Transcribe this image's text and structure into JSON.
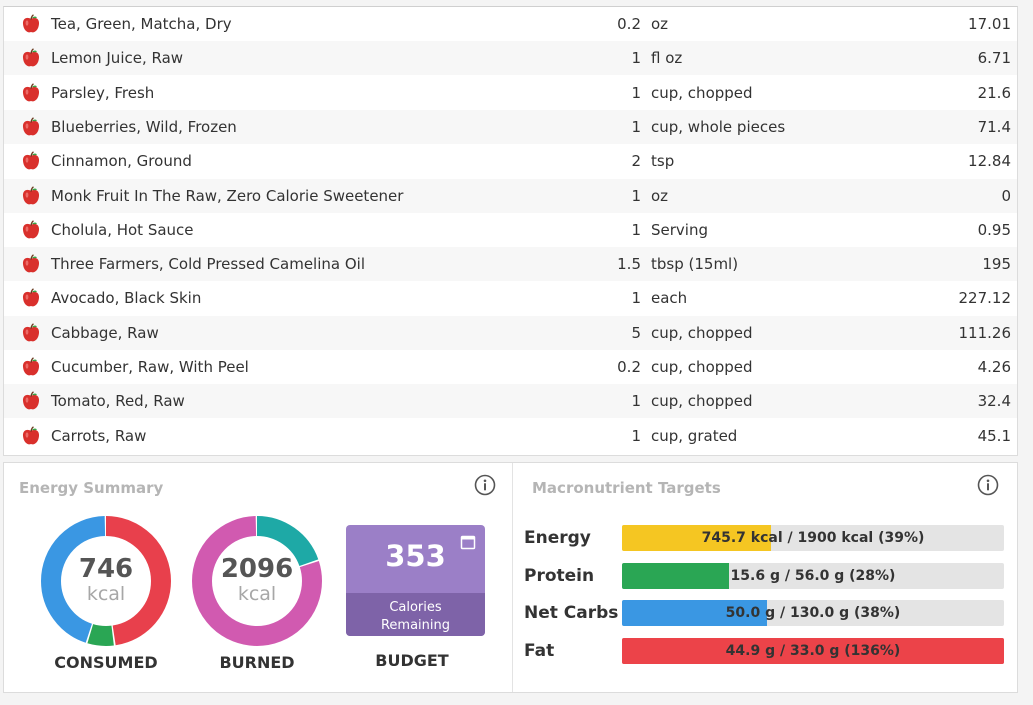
{
  "food_rows": [
    {
      "name": "Tea, Green, Matcha, Dry",
      "amount": "0.2",
      "unit": "oz",
      "calories": "17.01"
    },
    {
      "name": "Lemon Juice, Raw",
      "amount": "1",
      "unit": "fl oz",
      "calories": "6.71"
    },
    {
      "name": "Parsley, Fresh",
      "amount": "1",
      "unit": "cup, chopped",
      "calories": "21.6"
    },
    {
      "name": "Blueberries, Wild, Frozen",
      "amount": "1",
      "unit": "cup, whole pieces",
      "calories": "71.4"
    },
    {
      "name": "Cinnamon, Ground",
      "amount": "2",
      "unit": "tsp",
      "calories": "12.84"
    },
    {
      "name": "Monk Fruit In The Raw, Zero Calorie Sweetener",
      "amount": "1",
      "unit": "oz",
      "calories": "0"
    },
    {
      "name": "Cholula, Hot Sauce",
      "amount": "1",
      "unit": "Serving",
      "calories": "0.95"
    },
    {
      "name": "Three Farmers, Cold Pressed Camelina Oil",
      "amount": "1.5",
      "unit": "tbsp (15ml)",
      "calories": "195"
    },
    {
      "name": "Avocado, Black Skin",
      "amount": "1",
      "unit": "each",
      "calories": "227.12"
    },
    {
      "name": "Cabbage, Raw",
      "amount": "5",
      "unit": "cup, chopped",
      "calories": "111.26"
    },
    {
      "name": "Cucumber, Raw, With Peel",
      "amount": "0.2",
      "unit": "cup, chopped",
      "calories": "4.26"
    },
    {
      "name": "Tomato, Red, Raw",
      "amount": "1",
      "unit": "cup, chopped",
      "calories": "32.4"
    },
    {
      "name": "Carrots, Raw",
      "amount": "1",
      "unit": "cup, grated",
      "calories": "45.1"
    }
  ],
  "food_icon": "apple-icon",
  "energy_summary": {
    "title": "Energy Summary",
    "consumed": {
      "value": "746",
      "unit": "kcal",
      "label": "CONSUMED",
      "segments": [
        {
          "color": "#e8404c",
          "fraction": 0.48
        },
        {
          "color": "#2aa654",
          "fraction": 0.07
        },
        {
          "color": "#3a97e3",
          "fraction": 0.45
        }
      ]
    },
    "burned": {
      "value": "2096",
      "unit": "kcal",
      "label": "BURNED",
      "segments": [
        {
          "color": "#1ea9a6",
          "fraction": 0.2
        },
        {
          "color": "#d15ab0",
          "fraction": 0.8
        }
      ]
    },
    "budget": {
      "value": "353",
      "line1": "Calories",
      "line2": "Remaining",
      "label": "BUDGET"
    }
  },
  "macronutrient_targets": {
    "title": "Macronutrient Targets",
    "rows": [
      {
        "label": "Energy",
        "text": "745.7 kcal / 1900 kcal (39%)",
        "fraction": 0.39,
        "color": "#f5c622"
      },
      {
        "label": "Protein",
        "text": "15.6 g / 56.0 g (28%)",
        "fraction": 0.28,
        "color": "#2aa654"
      },
      {
        "label": "Net Carbs",
        "text": "50.0 g / 130.0 g (38%)",
        "fraction": 0.38,
        "color": "#3a97e3"
      },
      {
        "label": "Fat",
        "text": "44.9 g / 33.0 g (136%)",
        "fraction": 1.36,
        "color": "#ec4349"
      }
    ]
  }
}
